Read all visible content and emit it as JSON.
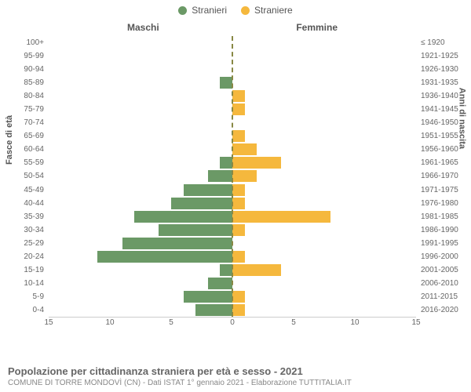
{
  "legend": {
    "male": {
      "label": "Stranieri",
      "color": "#6b9966"
    },
    "female": {
      "label": "Straniere",
      "color": "#f5b83d"
    }
  },
  "headers": {
    "left": "Maschi",
    "right": "Femmine"
  },
  "y_axis_left": "Fasce di età",
  "y_axis_right": "Anni di nascita",
  "chart": {
    "type": "population-pyramid",
    "x_max": 15,
    "x_ticks_left": [
      15,
      10,
      5,
      0
    ],
    "x_ticks_right": [
      0,
      5,
      10,
      15
    ],
    "bar_color_left": "#6b9966",
    "bar_color_right": "#f5b83d",
    "background": "#ffffff",
    "rows": [
      {
        "age": "100+",
        "birth": "≤ 1920",
        "m": 0,
        "f": 0
      },
      {
        "age": "95-99",
        "birth": "1921-1925",
        "m": 0,
        "f": 0
      },
      {
        "age": "90-94",
        "birth": "1926-1930",
        "m": 0,
        "f": 0
      },
      {
        "age": "85-89",
        "birth": "1931-1935",
        "m": 1,
        "f": 0
      },
      {
        "age": "80-84",
        "birth": "1936-1940",
        "m": 0,
        "f": 1
      },
      {
        "age": "75-79",
        "birth": "1941-1945",
        "m": 0,
        "f": 1
      },
      {
        "age": "70-74",
        "birth": "1946-1950",
        "m": 0,
        "f": 0
      },
      {
        "age": "65-69",
        "birth": "1951-1955",
        "m": 0,
        "f": 1
      },
      {
        "age": "60-64",
        "birth": "1956-1960",
        "m": 0,
        "f": 2
      },
      {
        "age": "55-59",
        "birth": "1961-1965",
        "m": 1,
        "f": 4
      },
      {
        "age": "50-54",
        "birth": "1966-1970",
        "m": 2,
        "f": 2
      },
      {
        "age": "45-49",
        "birth": "1971-1975",
        "m": 4,
        "f": 1
      },
      {
        "age": "40-44",
        "birth": "1976-1980",
        "m": 5,
        "f": 1
      },
      {
        "age": "35-39",
        "birth": "1981-1985",
        "m": 8,
        "f": 8
      },
      {
        "age": "30-34",
        "birth": "1986-1990",
        "m": 6,
        "f": 1
      },
      {
        "age": "25-29",
        "birth": "1991-1995",
        "m": 9,
        "f": 0
      },
      {
        "age": "20-24",
        "birth": "1996-2000",
        "m": 11,
        "f": 1
      },
      {
        "age": "15-19",
        "birth": "2001-2005",
        "m": 1,
        "f": 4
      },
      {
        "age": "10-14",
        "birth": "2006-2010",
        "m": 2,
        "f": 0
      },
      {
        "age": "5-9",
        "birth": "2011-2015",
        "m": 4,
        "f": 1
      },
      {
        "age": "0-4",
        "birth": "2016-2020",
        "m": 3,
        "f": 1
      }
    ]
  },
  "caption": {
    "title": "Popolazione per cittadinanza straniera per età e sesso - 2021",
    "subtitle": "COMUNE DI TORRE MONDOVÌ (CN) - Dati ISTAT 1° gennaio 2021 - Elaborazione TUTTITALIA.IT"
  }
}
